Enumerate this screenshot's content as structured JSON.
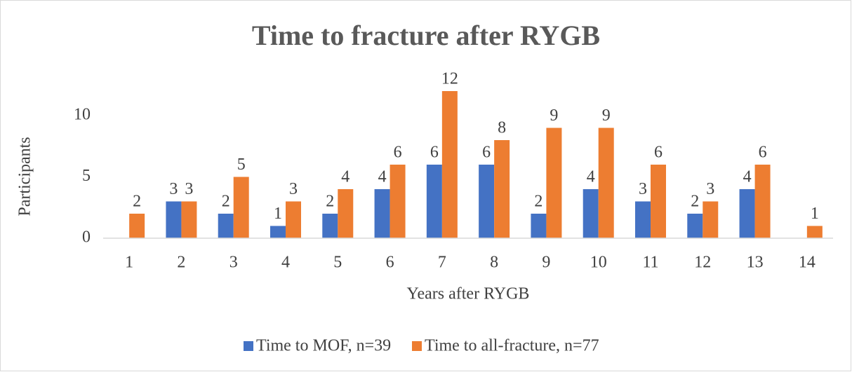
{
  "chart_data": {
    "type": "bar",
    "title": "Time to fracture after RYGB",
    "x_label": "Years after RYGB",
    "y_label": "Participants",
    "categories": [
      "1",
      "2",
      "3",
      "4",
      "5",
      "6",
      "7",
      "8",
      "9",
      "10",
      "11",
      "12",
      "13",
      "14"
    ],
    "series": [
      {
        "name": "Time to MOF, n=39",
        "color": "#4472c4",
        "values": [
          null,
          3,
          2,
          1,
          2,
          4,
          6,
          6,
          2,
          4,
          3,
          2,
          4,
          null
        ]
      },
      {
        "name": "Time to all-fracture, n=77",
        "color": "#ed7d31",
        "values": [
          2,
          3,
          5,
          3,
          4,
          6,
          12,
          8,
          9,
          9,
          6,
          3,
          6,
          1
        ]
      }
    ],
    "ylim": [
      0,
      14
    ],
    "yticks": [
      0,
      5,
      10
    ],
    "grid": false,
    "legend": "bottom"
  }
}
